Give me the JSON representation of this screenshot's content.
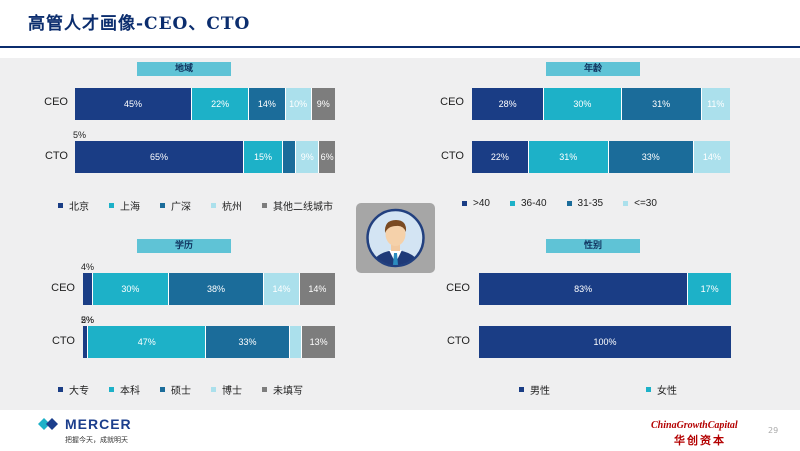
{
  "title": "高管人才画像-CEO、CTO",
  "colors": {
    "navy": "#1a3d85",
    "cyan": "#1db1c8",
    "teal": "#1b6c9a",
    "lightcyan": "#abe0ec",
    "gray": "#7d7d7d"
  },
  "sections": {
    "region": {
      "label": "地域",
      "rows": [
        {
          "name": "CEO",
          "values": [
            45,
            22,
            14,
            10,
            9
          ],
          "labels": [
            "45%",
            "22%",
            "14%",
            "10%",
            "9%"
          ]
        },
        {
          "name": "CTO",
          "values": [
            65,
            15,
            5,
            9,
            6
          ],
          "labels": [
            "65%",
            "15%",
            "5%",
            "9%",
            "6%"
          ]
        }
      ],
      "legend": [
        "北京",
        "上海",
        "广深",
        "杭州",
        "其他二线城市"
      ]
    },
    "age": {
      "label": "年龄",
      "rows": [
        {
          "name": "CEO",
          "values": [
            28,
            30,
            31,
            11
          ],
          "labels": [
            "28%",
            "30%",
            "31%",
            "11%"
          ]
        },
        {
          "name": "CTO",
          "values": [
            22,
            31,
            33,
            14
          ],
          "labels": [
            "22%",
            "31%",
            "33%",
            "14%"
          ]
        }
      ],
      "legend": [
        ">40",
        "36-40",
        "31-35",
        "<=30"
      ]
    },
    "education": {
      "label": "学历",
      "rows": [
        {
          "name": "CEO",
          "values": [
            4,
            30,
            38,
            14,
            14
          ],
          "labels": [
            "4%",
            "30%",
            "38%",
            "14%",
            "14%"
          ]
        },
        {
          "name": "CTO",
          "values": [
            2,
            47,
            33,
            5,
            13
          ],
          "labels": [
            "2%",
            "47%",
            "33%",
            "5%",
            "13%"
          ]
        }
      ],
      "legend": [
        "大专",
        "本科",
        "硕士",
        "博士",
        "未填写"
      ]
    },
    "gender": {
      "label": "性别",
      "rows": [
        {
          "name": "CEO",
          "values": [
            83,
            17
          ],
          "labels": [
            "83%",
            "17%"
          ]
        },
        {
          "name": "CTO",
          "values": [
            100
          ],
          "labels": [
            "100%"
          ]
        }
      ],
      "legend": [
        "男性",
        "女性"
      ]
    }
  },
  "footer": {
    "mercer_brand": "MERCER",
    "mercer_tagline": "把握今天，成就明天",
    "cgc_brand": "ChinaGrowthCapital",
    "cgc_cn": "华创资本",
    "page_number": "29"
  }
}
